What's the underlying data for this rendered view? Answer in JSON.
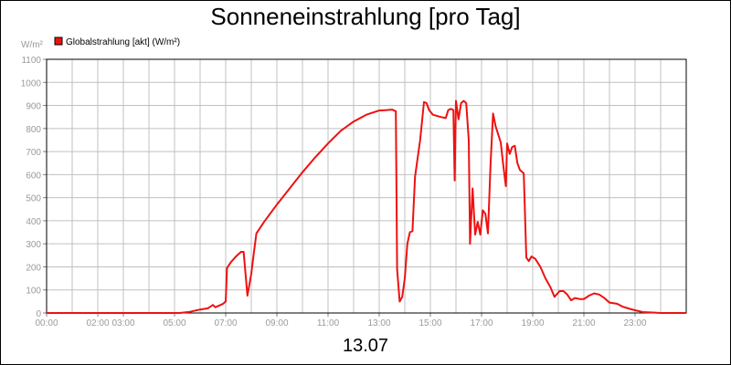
{
  "chart_data": {
    "type": "line",
    "title": "Sonneneinstrahlung [pro Tag]",
    "ylabel": "W/m²",
    "xlabel": "13.07",
    "ylim": [
      0,
      1100
    ],
    "xlim_hours": [
      0,
      25
    ],
    "grid": true,
    "legend_position": "top-left",
    "y_ticks": [
      "0",
      "100",
      "200",
      "300",
      "400",
      "500",
      "600",
      "700",
      "800",
      "900",
      "1000",
      "1100"
    ],
    "x_ticks": [
      {
        "h": 0,
        "label": "00:00"
      },
      {
        "h": 2,
        "label": "02:00"
      },
      {
        "h": 3,
        "label": "03:00"
      },
      {
        "h": 5,
        "label": "05:00"
      },
      {
        "h": 7,
        "label": "07:00"
      },
      {
        "h": 9,
        "label": "09:00"
      },
      {
        "h": 11,
        "label": "11:00"
      },
      {
        "h": 13,
        "label": "13:00"
      },
      {
        "h": 15,
        "label": "15:00"
      },
      {
        "h": 17,
        "label": "17:00"
      },
      {
        "h": 19,
        "label": "19:00"
      },
      {
        "h": 21,
        "label": "21:00"
      },
      {
        "h": 23,
        "label": "23:00"
      }
    ],
    "series": [
      {
        "name": "Globalstrahlung [akt] (W/m²)",
        "color": "#ee1111",
        "points": [
          [
            0,
            0
          ],
          [
            5.2,
            0
          ],
          [
            5.6,
            5
          ],
          [
            6.0,
            15
          ],
          [
            6.3,
            20
          ],
          [
            6.5,
            35
          ],
          [
            6.6,
            25
          ],
          [
            6.8,
            35
          ],
          [
            6.9,
            40
          ],
          [
            7.0,
            50
          ],
          [
            7.05,
            195
          ],
          [
            7.2,
            220
          ],
          [
            7.4,
            245
          ],
          [
            7.6,
            265
          ],
          [
            7.7,
            265
          ],
          [
            7.85,
            75
          ],
          [
            8.0,
            170
          ],
          [
            8.1,
            260
          ],
          [
            8.2,
            345
          ],
          [
            8.5,
            395
          ],
          [
            9.0,
            470
          ],
          [
            9.5,
            540
          ],
          [
            10.0,
            610
          ],
          [
            10.5,
            675
          ],
          [
            11.0,
            735
          ],
          [
            11.5,
            790
          ],
          [
            12.0,
            830
          ],
          [
            12.5,
            860
          ],
          [
            13.0,
            878
          ],
          [
            13.3,
            880
          ],
          [
            13.5,
            882
          ],
          [
            13.65,
            875
          ],
          [
            13.7,
            190
          ],
          [
            13.8,
            50
          ],
          [
            13.9,
            70
          ],
          [
            14.0,
            150
          ],
          [
            14.1,
            300
          ],
          [
            14.2,
            350
          ],
          [
            14.3,
            355
          ],
          [
            14.4,
            590
          ],
          [
            14.6,
            750
          ],
          [
            14.7,
            860
          ],
          [
            14.75,
            915
          ],
          [
            14.85,
            910
          ],
          [
            14.95,
            880
          ],
          [
            15.1,
            860
          ],
          [
            15.4,
            850
          ],
          [
            15.6,
            845
          ],
          [
            15.7,
            880
          ],
          [
            15.8,
            885
          ],
          [
            15.9,
            880
          ],
          [
            15.95,
            575
          ],
          [
            16.0,
            920
          ],
          [
            16.1,
            840
          ],
          [
            16.2,
            910
          ],
          [
            16.3,
            920
          ],
          [
            16.4,
            910
          ],
          [
            16.5,
            750
          ],
          [
            16.55,
            300
          ],
          [
            16.65,
            540
          ],
          [
            16.75,
            340
          ],
          [
            16.85,
            395
          ],
          [
            16.95,
            340
          ],
          [
            17.05,
            445
          ],
          [
            17.15,
            430
          ],
          [
            17.25,
            345
          ],
          [
            17.35,
            640
          ],
          [
            17.45,
            865
          ],
          [
            17.55,
            810
          ],
          [
            17.75,
            740
          ],
          [
            17.85,
            640
          ],
          [
            17.95,
            550
          ],
          [
            18.0,
            735
          ],
          [
            18.1,
            690
          ],
          [
            18.2,
            720
          ],
          [
            18.3,
            725
          ],
          [
            18.4,
            650
          ],
          [
            18.5,
            620
          ],
          [
            18.6,
            610
          ],
          [
            18.65,
            605
          ],
          [
            18.75,
            240
          ],
          [
            18.85,
            225
          ],
          [
            18.95,
            245
          ],
          [
            19.1,
            235
          ],
          [
            19.3,
            200
          ],
          [
            19.5,
            150
          ],
          [
            19.7,
            110
          ],
          [
            19.85,
            70
          ],
          [
            20.05,
            95
          ],
          [
            20.2,
            95
          ],
          [
            20.35,
            80
          ],
          [
            20.5,
            55
          ],
          [
            20.65,
            65
          ],
          [
            20.85,
            60
          ],
          [
            21.0,
            60
          ],
          [
            21.2,
            75
          ],
          [
            21.4,
            85
          ],
          [
            21.6,
            80
          ],
          [
            21.8,
            65
          ],
          [
            22.0,
            45
          ],
          [
            22.3,
            40
          ],
          [
            22.5,
            28
          ],
          [
            22.8,
            18
          ],
          [
            23.0,
            12
          ],
          [
            23.3,
            4
          ],
          [
            23.7,
            2
          ],
          [
            24.0,
            0
          ],
          [
            25.0,
            0
          ]
        ]
      }
    ]
  }
}
